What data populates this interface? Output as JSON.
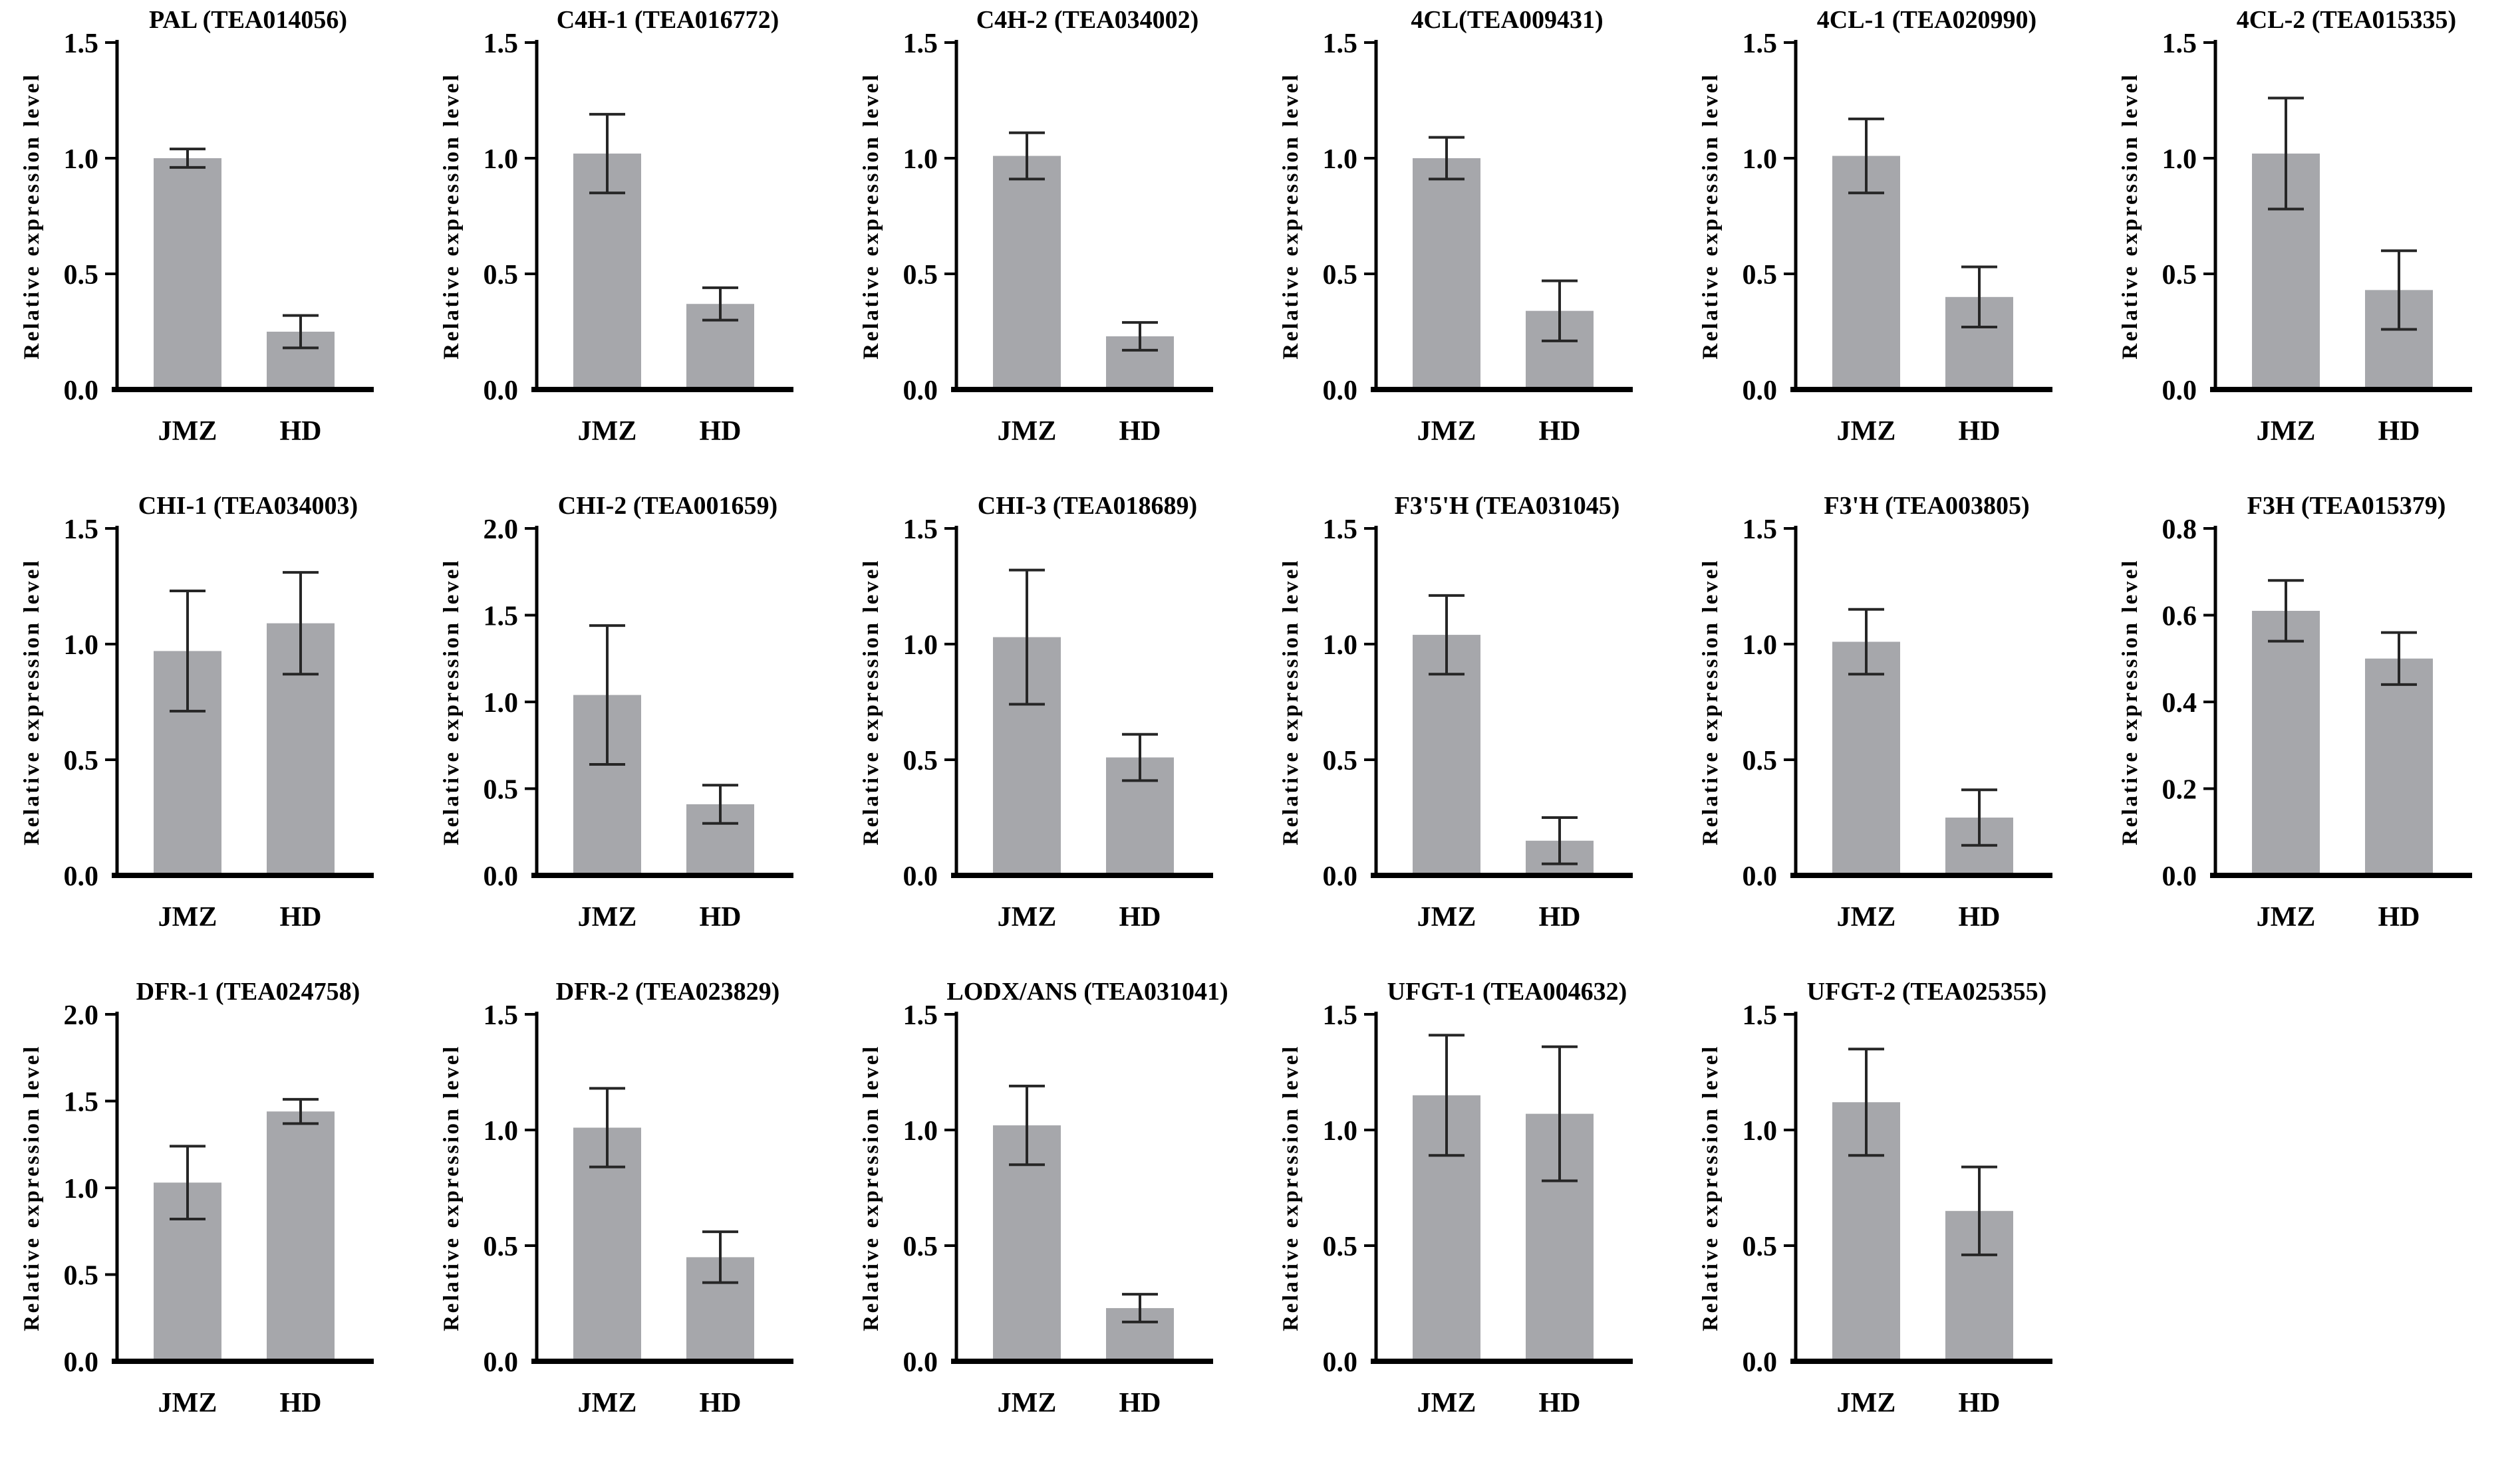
{
  "figure": {
    "ylabel": "Relative expression level",
    "categories": [
      "JMZ",
      "HD"
    ],
    "bar_color": "#a6a7ab",
    "axis_color": "#000000",
    "error_bar_color": "#262626",
    "text_color": "#000000"
  },
  "chart_data": [
    {
      "type": "bar",
      "title": "PAL (TEA014056)",
      "gene": "PAL",
      "accession": "TEA014056",
      "categories": [
        "JMZ",
        "HD"
      ],
      "values": [
        1.0,
        0.25
      ],
      "errors": [
        0.04,
        0.07
      ],
      "ylabel": "Relative expression level",
      "ylim": [
        0,
        1.5
      ],
      "yticks": [
        0,
        0.5,
        1.0,
        1.5
      ]
    },
    {
      "type": "bar",
      "title": "C4H-1 (TEA016772)",
      "gene": "C4H-1",
      "accession": "TEA016772",
      "categories": [
        "JMZ",
        "HD"
      ],
      "values": [
        1.02,
        0.37
      ],
      "errors": [
        0.17,
        0.07
      ],
      "ylabel": "Relative expression level",
      "ylim": [
        0,
        1.5
      ],
      "yticks": [
        0,
        0.5,
        1.0,
        1.5
      ]
    },
    {
      "type": "bar",
      "title": "C4H-2 (TEA034002)",
      "gene": "C4H-2",
      "accession": "TEA034002",
      "categories": [
        "JMZ",
        "HD"
      ],
      "values": [
        1.01,
        0.23
      ],
      "errors": [
        0.1,
        0.06
      ],
      "ylabel": "Relative expression level",
      "ylim": [
        0,
        1.5
      ],
      "yticks": [
        0,
        0.5,
        1.0,
        1.5
      ]
    },
    {
      "type": "bar",
      "title": "4CL(TEA009431)",
      "gene": "4CL",
      "accession": "TEA009431",
      "categories": [
        "JMZ",
        "HD"
      ],
      "values": [
        1.0,
        0.34
      ],
      "errors": [
        0.09,
        0.13
      ],
      "ylabel": "Relative expression level",
      "ylim": [
        0,
        1.5
      ],
      "yticks": [
        0,
        0.5,
        1.0,
        1.5
      ]
    },
    {
      "type": "bar",
      "title": "4CL-1 (TEA020990)",
      "gene": "4CL-1",
      "accession": "TEA020990",
      "categories": [
        "JMZ",
        "HD"
      ],
      "values": [
        1.01,
        0.4
      ],
      "errors": [
        0.16,
        0.13
      ],
      "ylabel": "Relative expression level",
      "ylim": [
        0,
        1.5
      ],
      "yticks": [
        0,
        0.5,
        1.0,
        1.5
      ]
    },
    {
      "type": "bar",
      "title": "4CL-2 (TEA015335)",
      "gene": "4CL-2",
      "accession": "TEA015335",
      "categories": [
        "JMZ",
        "HD"
      ],
      "values": [
        1.02,
        0.43
      ],
      "errors": [
        0.24,
        0.17
      ],
      "ylabel": "Relative expression level",
      "ylim": [
        0,
        1.5
      ],
      "yticks": [
        0,
        0.5,
        1.0,
        1.5
      ]
    },
    {
      "type": "bar",
      "title": "CHI-1 (TEA034003)",
      "gene": "CHI-1",
      "accession": "TEA034003",
      "categories": [
        "JMZ",
        "HD"
      ],
      "values": [
        0.97,
        1.09
      ],
      "errors": [
        0.26,
        0.22
      ],
      "ylabel": "Relative expression level",
      "ylim": [
        0,
        1.5
      ],
      "yticks": [
        0,
        0.5,
        1.0,
        1.5
      ]
    },
    {
      "type": "bar",
      "title": "CHI-2 (TEA001659)",
      "gene": "CHI-2",
      "accession": "TEA001659",
      "categories": [
        "JMZ",
        "HD"
      ],
      "values": [
        1.04,
        0.41
      ],
      "errors": [
        0.4,
        0.11
      ],
      "ylabel": "Relative expression level",
      "ylim": [
        0,
        2.0
      ],
      "yticks": [
        0,
        0.5,
        1.0,
        1.5,
        2.0
      ]
    },
    {
      "type": "bar",
      "title": "CHI-3 (TEA018689)",
      "gene": "CHI-3",
      "accession": "TEA018689",
      "categories": [
        "JMZ",
        "HD"
      ],
      "values": [
        1.03,
        0.51
      ],
      "errors": [
        0.29,
        0.1
      ],
      "ylabel": "Relative expression level",
      "ylim": [
        0,
        1.5
      ],
      "yticks": [
        0,
        0.5,
        1.0,
        1.5
      ]
    },
    {
      "type": "bar",
      "title": "F3'5'H (TEA031045)",
      "gene": "F3'5'H",
      "accession": "TEA031045",
      "categories": [
        "JMZ",
        "HD"
      ],
      "values": [
        1.04,
        0.15
      ],
      "errors": [
        0.17,
        0.1
      ],
      "ylabel": "Relative expression level",
      "ylim": [
        0,
        1.5
      ],
      "yticks": [
        0,
        0.5,
        1.0,
        1.5
      ]
    },
    {
      "type": "bar",
      "title": "F3'H (TEA003805)",
      "gene": "F3'H",
      "accession": "TEA003805",
      "categories": [
        "JMZ",
        "HD"
      ],
      "values": [
        1.01,
        0.25
      ],
      "errors": [
        0.14,
        0.12
      ],
      "ylabel": "Relative expression level",
      "ylim": [
        0,
        1.5
      ],
      "yticks": [
        0,
        0.5,
        1.0,
        1.5
      ]
    },
    {
      "type": "bar",
      "title": "F3H (TEA015379)",
      "gene": "F3H",
      "accession": "TEA015379",
      "categories": [
        "JMZ",
        "HD"
      ],
      "values": [
        0.61,
        0.5
      ],
      "errors": [
        0.07,
        0.06
      ],
      "ylabel": "Relative expression level",
      "ylim": [
        0,
        0.8
      ],
      "yticks": [
        0,
        0.2,
        0.4,
        0.6,
        0.8
      ]
    },
    {
      "type": "bar",
      "title": "DFR-1 (TEA024758)",
      "gene": "DFR-1",
      "accession": "TEA024758",
      "categories": [
        "JMZ",
        "HD"
      ],
      "values": [
        1.03,
        1.44
      ],
      "errors": [
        0.21,
        0.07
      ],
      "ylabel": "Relative expression level",
      "ylim": [
        0,
        2.0
      ],
      "yticks": [
        0,
        0.5,
        1.0,
        1.5,
        2.0
      ]
    },
    {
      "type": "bar",
      "title": "DFR-2 (TEA023829)",
      "gene": "DFR-2",
      "accession": "TEA023829",
      "categories": [
        "JMZ",
        "HD"
      ],
      "values": [
        1.01,
        0.45
      ],
      "errors": [
        0.17,
        0.11
      ],
      "ylabel": "Relative expression level",
      "ylim": [
        0,
        1.5
      ],
      "yticks": [
        0,
        0.5,
        1.0,
        1.5
      ]
    },
    {
      "type": "bar",
      "title": "LODX/ANS (TEA031041)",
      "gene": "LODX/ANS",
      "accession": "TEA031041",
      "categories": [
        "JMZ",
        "HD"
      ],
      "values": [
        1.02,
        0.23
      ],
      "errors": [
        0.17,
        0.06
      ],
      "ylabel": "Relative expression level",
      "ylim": [
        0,
        1.5
      ],
      "yticks": [
        0,
        0.5,
        1.0,
        1.5
      ]
    },
    {
      "type": "bar",
      "title": "UFGT-1 (TEA004632)",
      "gene": "UFGT-1",
      "accession": "TEA004632",
      "categories": [
        "JMZ",
        "HD"
      ],
      "values": [
        1.15,
        1.07
      ],
      "errors": [
        0.26,
        0.29
      ],
      "ylabel": "Relative expression level",
      "ylim": [
        0,
        1.5
      ],
      "yticks": [
        0,
        0.5,
        1.0,
        1.5
      ]
    },
    {
      "type": "bar",
      "title": "UFGT-2 (TEA025355)",
      "gene": "UFGT-2",
      "accession": "TEA025355",
      "categories": [
        "JMZ",
        "HD"
      ],
      "values": [
        1.12,
        0.65
      ],
      "errors": [
        0.23,
        0.19
      ],
      "ylabel": "Relative expression level",
      "ylim": [
        0,
        1.5
      ],
      "yticks": [
        0,
        0.5,
        1.0,
        1.5
      ]
    }
  ]
}
